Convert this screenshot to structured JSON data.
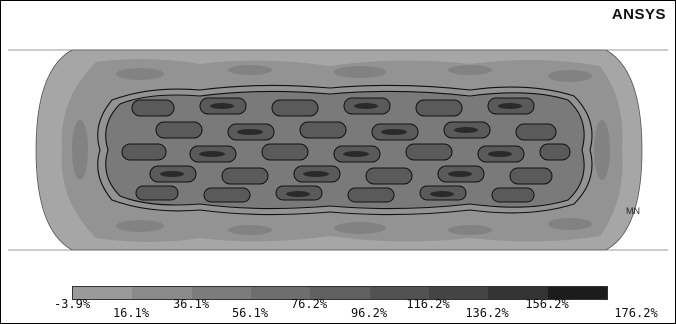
{
  "brand": "ANSYS",
  "node_label": "MN",
  "legend": {
    "colors": [
      "#9a9a9a",
      "#8a8a8a",
      "#7c7c7c",
      "#6e6e6e",
      "#606060",
      "#525252",
      "#444444",
      "#333333",
      "#1c1c1c"
    ],
    "labels": [
      "-3.9%",
      "16.1%",
      "36.1%",
      "56.1%",
      "76.2%",
      "96.2%",
      "116.2%",
      "136.2%",
      "156.2%",
      "176.2%"
    ]
  }
}
